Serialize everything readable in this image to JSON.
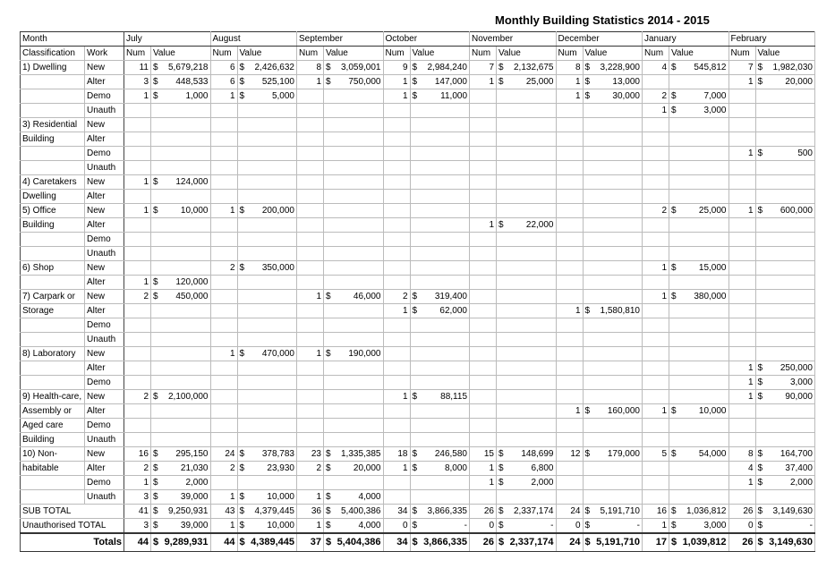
{
  "title": "Monthly Building Statistics 2014 - 2015",
  "header": {
    "month": "Month",
    "classification": "Classification",
    "work": "Work",
    "num": "Num",
    "value": "Value",
    "months": [
      "July",
      "August",
      "September",
      "October",
      "November",
      "December",
      "January",
      "February"
    ]
  },
  "table": {
    "groups": [
      {
        "rows": [
          {
            "classification": "1) Dwelling",
            "work": "New",
            "cells": [
              [
                "11",
                "$",
                "5,679,218"
              ],
              [
                "6",
                "$",
                "2,426,632"
              ],
              [
                "8",
                "$",
                "3,059,001"
              ],
              [
                "9",
                "$",
                "2,984,240"
              ],
              [
                "7",
                "$",
                "2,132,675"
              ],
              [
                "8",
                "$",
                "3,228,900"
              ],
              [
                "4",
                "$",
                "545,812"
              ],
              [
                "7",
                "$",
                "1,982,030"
              ]
            ]
          },
          {
            "classification": null,
            "work": "Alter",
            "cells": [
              [
                "3",
                "$",
                "448,533"
              ],
              [
                "6",
                "$",
                "525,100"
              ],
              [
                "1",
                "$",
                "750,000"
              ],
              [
                "1",
                "$",
                "147,000"
              ],
              [
                "1",
                "$",
                "25,000"
              ],
              [
                "1",
                "$",
                "13,000"
              ],
              null,
              [
                "1",
                "$",
                "20,000"
              ]
            ]
          },
          {
            "classification": null,
            "work": "Demo",
            "cells": [
              [
                "1",
                "$",
                "1,000"
              ],
              [
                "1",
                "$",
                "5,000"
              ],
              null,
              [
                "1",
                "$",
                "11,000"
              ],
              null,
              [
                "1",
                "$",
                "30,000"
              ],
              [
                "2",
                "$",
                "7,000"
              ],
              null
            ]
          },
          {
            "classification": null,
            "work": "Unauth",
            "cells": [
              null,
              null,
              null,
              null,
              null,
              null,
              [
                "1",
                "$",
                "3,000"
              ],
              null
            ]
          }
        ]
      },
      {
        "rows": [
          {
            "classification": "3) Residential",
            "work": "New",
            "cells": [
              null,
              null,
              null,
              null,
              null,
              null,
              null,
              null
            ]
          },
          {
            "classification": "Building",
            "work": "Alter",
            "cells": [
              null,
              null,
              null,
              null,
              null,
              null,
              null,
              null
            ]
          },
          {
            "classification": null,
            "work": "Demo",
            "cells": [
              null,
              null,
              null,
              null,
              null,
              null,
              null,
              [
                "1",
                "$",
                "500"
              ]
            ]
          },
          {
            "classification": null,
            "work": "Unauth",
            "cells": [
              null,
              null,
              null,
              null,
              null,
              null,
              null,
              null
            ]
          }
        ]
      },
      {
        "rows": [
          {
            "classification": "4) Caretakers",
            "work": "New",
            "cells": [
              [
                "1",
                "$",
                "124,000"
              ],
              null,
              null,
              null,
              null,
              null,
              null,
              null
            ]
          },
          {
            "classification": "Dwelling",
            "work": "Alter",
            "cells": [
              null,
              null,
              null,
              null,
              null,
              null,
              null,
              null
            ]
          }
        ]
      },
      {
        "rows": [
          {
            "classification": "5) Office",
            "work": "New",
            "cells": [
              [
                "1",
                "$",
                "10,000"
              ],
              [
                "1",
                "$",
                "200,000"
              ],
              null,
              null,
              null,
              null,
              [
                "2",
                "$",
                "25,000"
              ],
              [
                "1",
                "$",
                "600,000"
              ]
            ]
          },
          {
            "classification": "Building",
            "work": "Alter",
            "cells": [
              null,
              null,
              null,
              null,
              [
                "1",
                "$",
                "22,000"
              ],
              null,
              null,
              null
            ]
          },
          {
            "classification": null,
            "work": "Demo",
            "cells": [
              null,
              null,
              null,
              null,
              null,
              null,
              null,
              null
            ]
          },
          {
            "classification": null,
            "work": "Unauth",
            "cells": [
              null,
              null,
              null,
              null,
              null,
              null,
              null,
              null
            ]
          }
        ]
      },
      {
        "rows": [
          {
            "classification": "6) Shop",
            "work": "New",
            "cells": [
              null,
              [
                "2",
                "$",
                "350,000"
              ],
              null,
              null,
              null,
              null,
              [
                "1",
                "$",
                "15,000"
              ],
              null
            ]
          },
          {
            "classification": null,
            "work": "Alter",
            "cells": [
              [
                "1",
                "$",
                "120,000"
              ],
              null,
              null,
              null,
              null,
              null,
              null,
              null
            ]
          }
        ]
      },
      {
        "rows": [
          {
            "classification": "7) Carpark or",
            "work": "New",
            "cells": [
              [
                "2",
                "$",
                "450,000"
              ],
              null,
              [
                "1",
                "$",
                "46,000"
              ],
              [
                "2",
                "$",
                "319,400"
              ],
              null,
              null,
              [
                "1",
                "$",
                "380,000"
              ],
              null
            ]
          },
          {
            "classification": "Storage",
            "work": "Alter",
            "cells": [
              null,
              null,
              null,
              [
                "1",
                "$",
                "62,000"
              ],
              null,
              [
                "1",
                "$",
                "1,580,810"
              ],
              null,
              null
            ]
          },
          {
            "classification": null,
            "work": "Demo",
            "cells": [
              null,
              null,
              null,
              null,
              null,
              null,
              null,
              null
            ]
          },
          {
            "classification": null,
            "work": "Unauth",
            "cells": [
              null,
              null,
              null,
              null,
              null,
              null,
              null,
              null
            ]
          }
        ]
      },
      {
        "rows": [
          {
            "classification": "8) Laboratory",
            "work": "New",
            "cells": [
              null,
              [
                "1",
                "$",
                "470,000"
              ],
              [
                "1",
                "$",
                "190,000"
              ],
              null,
              null,
              null,
              null,
              null
            ]
          },
          {
            "classification": null,
            "work": "Alter",
            "cells": [
              null,
              null,
              null,
              null,
              null,
              null,
              null,
              [
                "1",
                "$",
                "250,000"
              ]
            ]
          },
          {
            "classification": null,
            "work": "Demo",
            "cells": [
              null,
              null,
              null,
              null,
              null,
              null,
              null,
              [
                "1",
                "$",
                "3,000"
              ]
            ]
          }
        ]
      },
      {
        "rows": [
          {
            "classification": "9) Health-care,",
            "work": "New",
            "cells": [
              [
                "2",
                "$",
                "2,100,000"
              ],
              null,
              null,
              [
                "1",
                "$",
                "88,115"
              ],
              null,
              null,
              null,
              [
                "1",
                "$",
                "90,000"
              ]
            ]
          },
          {
            "classification": "Assembly or",
            "work": "Alter",
            "cells": [
              null,
              null,
              null,
              null,
              null,
              [
                "1",
                "$",
                "160,000"
              ],
              [
                "1",
                "$",
                "10,000"
              ],
              null
            ]
          },
          {
            "classification": "Aged care",
            "work": "Demo",
            "cells": [
              null,
              null,
              null,
              null,
              null,
              null,
              null,
              null
            ]
          },
          {
            "classification": "Building",
            "work": "Unauth",
            "cells": [
              null,
              null,
              null,
              null,
              null,
              null,
              null,
              null
            ]
          }
        ]
      },
      {
        "rows": [
          {
            "classification": "10) Non-",
            "work": "New",
            "cells": [
              [
                "16",
                "$",
                "295,150"
              ],
              [
                "24",
                "$",
                "378,783"
              ],
              [
                "23",
                "$",
                "1,335,385"
              ],
              [
                "18",
                "$",
                "246,580"
              ],
              [
                "15",
                "$",
                "148,699"
              ],
              [
                "12",
                "$",
                "179,000"
              ],
              [
                "5",
                "$",
                "54,000"
              ],
              [
                "8",
                "$",
                "164,700"
              ]
            ]
          },
          {
            "classification": "habitable",
            "work": "Alter",
            "cells": [
              [
                "2",
                "$",
                "21,030"
              ],
              [
                "2",
                "$",
                "23,930"
              ],
              [
                "2",
                "$",
                "20,000"
              ],
              [
                "1",
                "$",
                "8,000"
              ],
              [
                "1",
                "$",
                "6,800"
              ],
              null,
              null,
              [
                "4",
                "$",
                "37,400"
              ]
            ]
          },
          {
            "classification": null,
            "work": "Demo",
            "cells": [
              [
                "1",
                "$",
                "2,000"
              ],
              null,
              null,
              null,
              [
                "1",
                "$",
                "2,000"
              ],
              null,
              null,
              [
                "1",
                "$",
                "2,000"
              ]
            ]
          },
          {
            "classification": null,
            "work": "Unauth",
            "cells": [
              [
                "3",
                "$",
                "39,000"
              ],
              [
                "1",
                "$",
                "10,000"
              ],
              [
                "1",
                "$",
                "4,000"
              ],
              null,
              null,
              null,
              null,
              null
            ]
          }
        ]
      }
    ],
    "summary": [
      {
        "label": "SUB TOTAL",
        "cells": [
          [
            "41",
            "$",
            "9,250,931"
          ],
          [
            "43",
            "$",
            "4,379,445"
          ],
          [
            "36",
            "$",
            "5,400,386"
          ],
          [
            "34",
            "$",
            "3,866,335"
          ],
          [
            "26",
            "$",
            "2,337,174"
          ],
          [
            "24",
            "$",
            "5,191,710"
          ],
          [
            "16",
            "$",
            "1,036,812"
          ],
          [
            "26",
            "$",
            "3,149,630"
          ]
        ]
      },
      {
        "label": "Unauthorised TOTAL",
        "cells": [
          [
            "3",
            "$",
            "39,000"
          ],
          [
            "1",
            "$",
            "10,000"
          ],
          [
            "1",
            "$",
            "4,000"
          ],
          [
            "0",
            "$",
            "-"
          ],
          [
            "0",
            "$",
            "-"
          ],
          [
            "0",
            "$",
            "-"
          ],
          [
            "1",
            "$",
            "3,000"
          ],
          [
            "0",
            "$",
            "-"
          ]
        ]
      },
      {
        "label": "Totals",
        "cells": [
          [
            "44",
            "$",
            "9,289,931"
          ],
          [
            "44",
            "$",
            "4,389,445"
          ],
          [
            "37",
            "$",
            "5,404,386"
          ],
          [
            "34",
            "$",
            "3,866,335"
          ],
          [
            "26",
            "$",
            "2,337,174"
          ],
          [
            "24",
            "$",
            "5,191,710"
          ],
          [
            "17",
            "$",
            "1,039,812"
          ],
          [
            "26",
            "$",
            "3,149,630"
          ]
        ]
      }
    ]
  }
}
